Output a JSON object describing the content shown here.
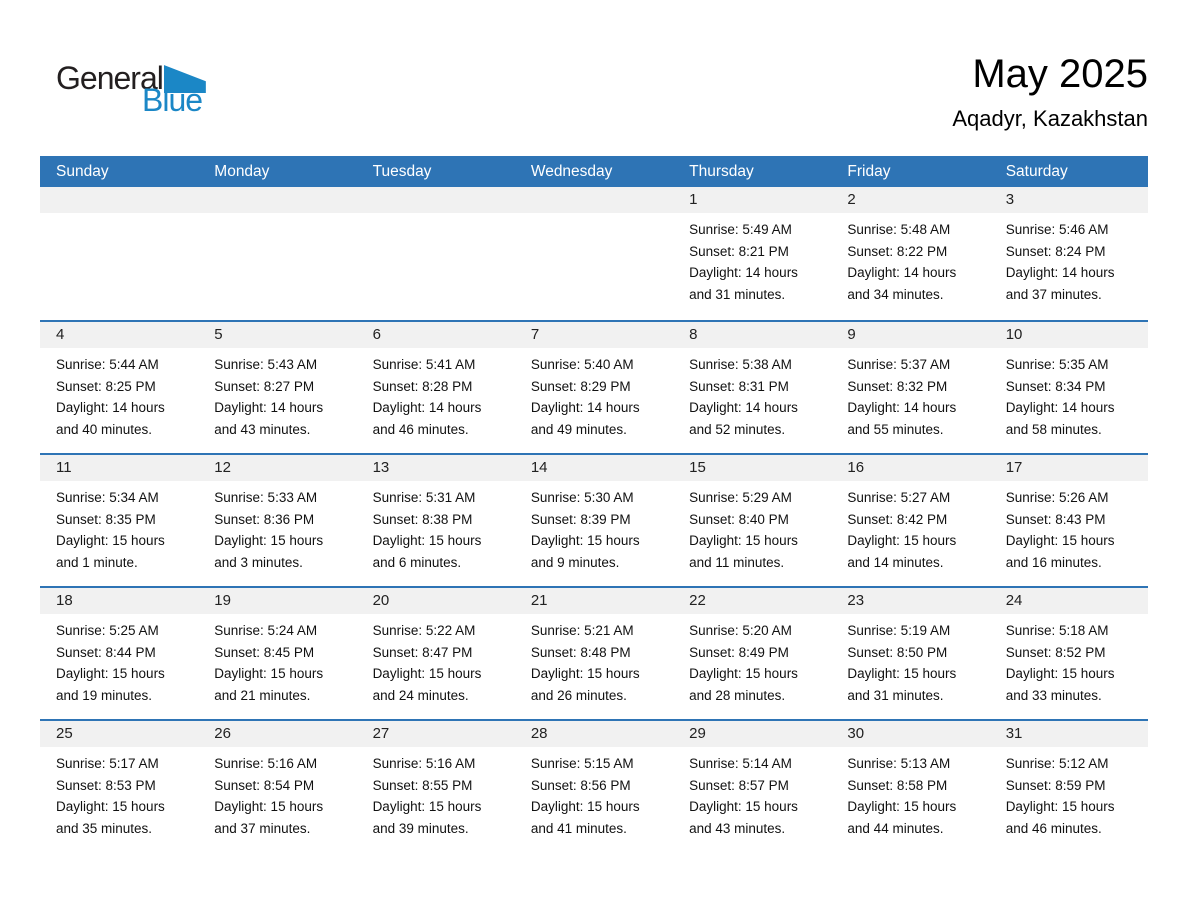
{
  "logo": {
    "general": "General",
    "blue": "Blue",
    "brand_blue": "#1b87c6",
    "brand_black": "#231f20"
  },
  "header": {
    "title": "May 2025",
    "subtitle": "Aqadyr, Kazakhstan"
  },
  "colors": {
    "header_bar": "#2e74b5",
    "row_separator": "#2e74b5",
    "day_band": "#f1f1f1"
  },
  "calendar": {
    "day_headers": [
      "Sunday",
      "Monday",
      "Tuesday",
      "Wednesday",
      "Thursday",
      "Friday",
      "Saturday"
    ],
    "weeks": [
      [
        null,
        null,
        null,
        null,
        {
          "day": "1",
          "sunrise": "Sunrise: 5:49 AM",
          "sunset": "Sunset: 8:21 PM",
          "daylight": "Daylight: 14 hours and 31 minutes."
        },
        {
          "day": "2",
          "sunrise": "Sunrise: 5:48 AM",
          "sunset": "Sunset: 8:22 PM",
          "daylight": "Daylight: 14 hours and 34 minutes."
        },
        {
          "day": "3",
          "sunrise": "Sunrise: 5:46 AM",
          "sunset": "Sunset: 8:24 PM",
          "daylight": "Daylight: 14 hours and 37 minutes."
        }
      ],
      [
        {
          "day": "4",
          "sunrise": "Sunrise: 5:44 AM",
          "sunset": "Sunset: 8:25 PM",
          "daylight": "Daylight: 14 hours and 40 minutes."
        },
        {
          "day": "5",
          "sunrise": "Sunrise: 5:43 AM",
          "sunset": "Sunset: 8:27 PM",
          "daylight": "Daylight: 14 hours and 43 minutes."
        },
        {
          "day": "6",
          "sunrise": "Sunrise: 5:41 AM",
          "sunset": "Sunset: 8:28 PM",
          "daylight": "Daylight: 14 hours and 46 minutes."
        },
        {
          "day": "7",
          "sunrise": "Sunrise: 5:40 AM",
          "sunset": "Sunset: 8:29 PM",
          "daylight": "Daylight: 14 hours and 49 minutes."
        },
        {
          "day": "8",
          "sunrise": "Sunrise: 5:38 AM",
          "sunset": "Sunset: 8:31 PM",
          "daylight": "Daylight: 14 hours and 52 minutes."
        },
        {
          "day": "9",
          "sunrise": "Sunrise: 5:37 AM",
          "sunset": "Sunset: 8:32 PM",
          "daylight": "Daylight: 14 hours and 55 minutes."
        },
        {
          "day": "10",
          "sunrise": "Sunrise: 5:35 AM",
          "sunset": "Sunset: 8:34 PM",
          "daylight": "Daylight: 14 hours and 58 minutes."
        }
      ],
      [
        {
          "day": "11",
          "sunrise": "Sunrise: 5:34 AM",
          "sunset": "Sunset: 8:35 PM",
          "daylight": "Daylight: 15 hours and 1 minute."
        },
        {
          "day": "12",
          "sunrise": "Sunrise: 5:33 AM",
          "sunset": "Sunset: 8:36 PM",
          "daylight": "Daylight: 15 hours and 3 minutes."
        },
        {
          "day": "13",
          "sunrise": "Sunrise: 5:31 AM",
          "sunset": "Sunset: 8:38 PM",
          "daylight": "Daylight: 15 hours and 6 minutes."
        },
        {
          "day": "14",
          "sunrise": "Sunrise: 5:30 AM",
          "sunset": "Sunset: 8:39 PM",
          "daylight": "Daylight: 15 hours and 9 minutes."
        },
        {
          "day": "15",
          "sunrise": "Sunrise: 5:29 AM",
          "sunset": "Sunset: 8:40 PM",
          "daylight": "Daylight: 15 hours and 11 minutes."
        },
        {
          "day": "16",
          "sunrise": "Sunrise: 5:27 AM",
          "sunset": "Sunset: 8:42 PM",
          "daylight": "Daylight: 15 hours and 14 minutes."
        },
        {
          "day": "17",
          "sunrise": "Sunrise: 5:26 AM",
          "sunset": "Sunset: 8:43 PM",
          "daylight": "Daylight: 15 hours and 16 minutes."
        }
      ],
      [
        {
          "day": "18",
          "sunrise": "Sunrise: 5:25 AM",
          "sunset": "Sunset: 8:44 PM",
          "daylight": "Daylight: 15 hours and 19 minutes."
        },
        {
          "day": "19",
          "sunrise": "Sunrise: 5:24 AM",
          "sunset": "Sunset: 8:45 PM",
          "daylight": "Daylight: 15 hours and 21 minutes."
        },
        {
          "day": "20",
          "sunrise": "Sunrise: 5:22 AM",
          "sunset": "Sunset: 8:47 PM",
          "daylight": "Daylight: 15 hours and 24 minutes."
        },
        {
          "day": "21",
          "sunrise": "Sunrise: 5:21 AM",
          "sunset": "Sunset: 8:48 PM",
          "daylight": "Daylight: 15 hours and 26 minutes."
        },
        {
          "day": "22",
          "sunrise": "Sunrise: 5:20 AM",
          "sunset": "Sunset: 8:49 PM",
          "daylight": "Daylight: 15 hours and 28 minutes."
        },
        {
          "day": "23",
          "sunrise": "Sunrise: 5:19 AM",
          "sunset": "Sunset: 8:50 PM",
          "daylight": "Daylight: 15 hours and 31 minutes."
        },
        {
          "day": "24",
          "sunrise": "Sunrise: 5:18 AM",
          "sunset": "Sunset: 8:52 PM",
          "daylight": "Daylight: 15 hours and 33 minutes."
        }
      ],
      [
        {
          "day": "25",
          "sunrise": "Sunrise: 5:17 AM",
          "sunset": "Sunset: 8:53 PM",
          "daylight": "Daylight: 15 hours and 35 minutes."
        },
        {
          "day": "26",
          "sunrise": "Sunrise: 5:16 AM",
          "sunset": "Sunset: 8:54 PM",
          "daylight": "Daylight: 15 hours and 37 minutes."
        },
        {
          "day": "27",
          "sunrise": "Sunrise: 5:16 AM",
          "sunset": "Sunset: 8:55 PM",
          "daylight": "Daylight: 15 hours and 39 minutes."
        },
        {
          "day": "28",
          "sunrise": "Sunrise: 5:15 AM",
          "sunset": "Sunset: 8:56 PM",
          "daylight": "Daylight: 15 hours and 41 minutes."
        },
        {
          "day": "29",
          "sunrise": "Sunrise: 5:14 AM",
          "sunset": "Sunset: 8:57 PM",
          "daylight": "Daylight: 15 hours and 43 minutes."
        },
        {
          "day": "30",
          "sunrise": "Sunrise: 5:13 AM",
          "sunset": "Sunset: 8:58 PM",
          "daylight": "Daylight: 15 hours and 44 minutes."
        },
        {
          "day": "31",
          "sunrise": "Sunrise: 5:12 AM",
          "sunset": "Sunset: 8:59 PM",
          "daylight": "Daylight: 15 hours and 46 minutes."
        }
      ]
    ]
  }
}
